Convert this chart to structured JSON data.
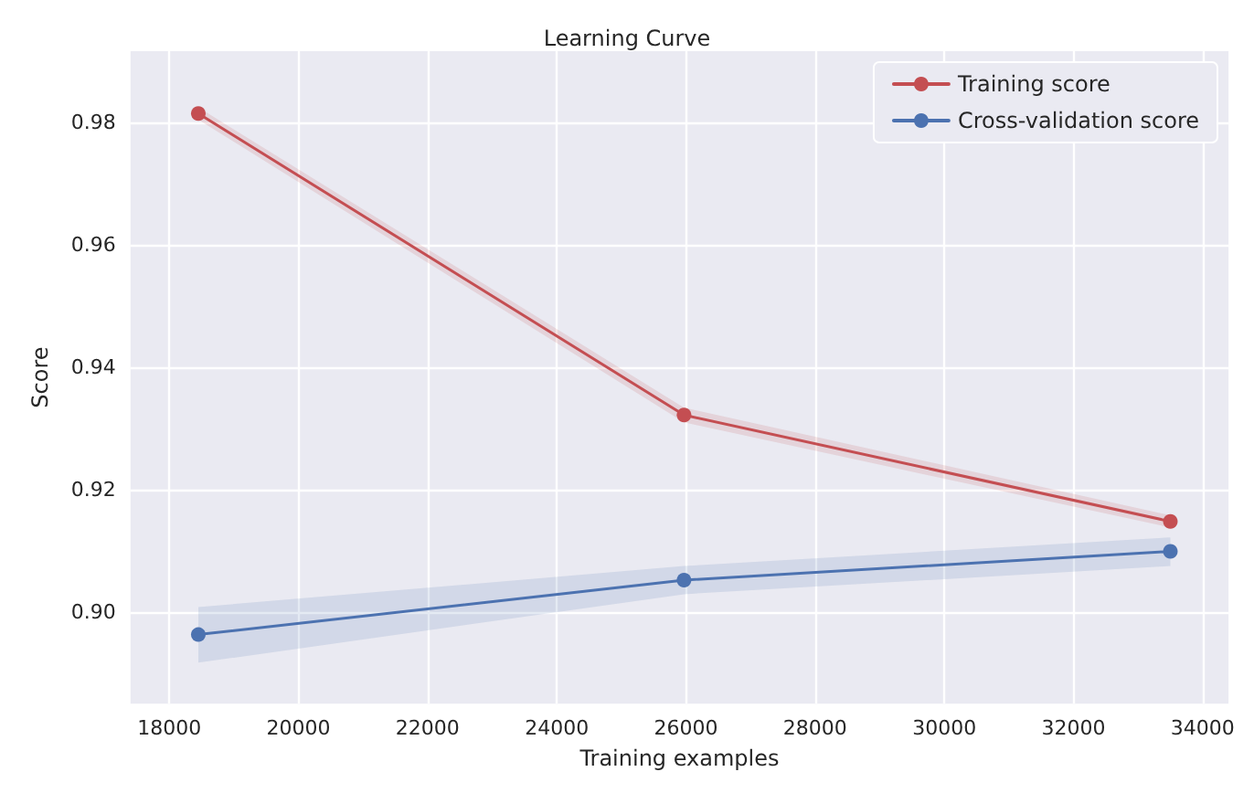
{
  "chart_data": {
    "type": "line",
    "title": "Learning Curve",
    "xlabel": "Training examples",
    "ylabel": "Score",
    "x": [
      18450,
      25970,
      33500
    ],
    "series": [
      {
        "name": "Training score",
        "color": "#c44e52",
        "values": [
          0.9815,
          0.9322,
          0.9148
        ],
        "lower": [
          0.9805,
          0.931,
          0.9138
        ],
        "upper": [
          0.9825,
          0.9334,
          0.9158
        ]
      },
      {
        "name": "Cross-validation score",
        "color": "#4c72b0",
        "values": [
          0.8963,
          0.9052,
          0.9099
        ],
        "lower": [
          0.8917,
          0.9029,
          0.9075
        ],
        "upper": [
          0.9008,
          0.9075,
          0.9122
        ]
      }
    ],
    "xlim": [
      17400,
      34400
    ],
    "xticks": [
      18000,
      20000,
      22000,
      24000,
      26000,
      28000,
      30000,
      32000,
      34000
    ],
    "ylim": [
      0.885,
      0.9917
    ],
    "yticks": [
      {
        "value": 0.9,
        "label": "0.90"
      },
      {
        "value": 0.92,
        "label": "0.92"
      },
      {
        "value": 0.94,
        "label": "0.94"
      },
      {
        "value": 0.96,
        "label": "0.96"
      },
      {
        "value": 0.98,
        "label": "0.98"
      }
    ],
    "grid": true,
    "legend": "top right",
    "marker": "circle",
    "line_style": "solid"
  }
}
